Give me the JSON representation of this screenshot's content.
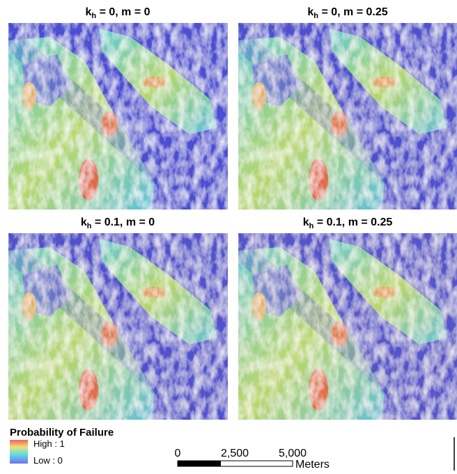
{
  "panels": [
    {
      "title": {
        "prefix": "k",
        "subscript": "h",
        "suffix": " = 0, m = 0"
      }
    },
    {
      "title": {
        "prefix": "k",
        "subscript": "h",
        "suffix": " = 0, m = 0.25"
      }
    },
    {
      "title": {
        "prefix": "k",
        "subscript": "h",
        "suffix": " = 0.1, m = 0"
      }
    },
    {
      "title": {
        "prefix": "k",
        "subscript": "h",
        "suffix": " = 0.1, m = 0.25"
      }
    }
  ],
  "legend": {
    "title": "Probability of Failure",
    "high": "High : 1",
    "low": "Low : 0"
  },
  "scale_bar": {
    "labels": [
      "0",
      "2,500",
      "5,000"
    ],
    "unit": "Meters"
  }
}
